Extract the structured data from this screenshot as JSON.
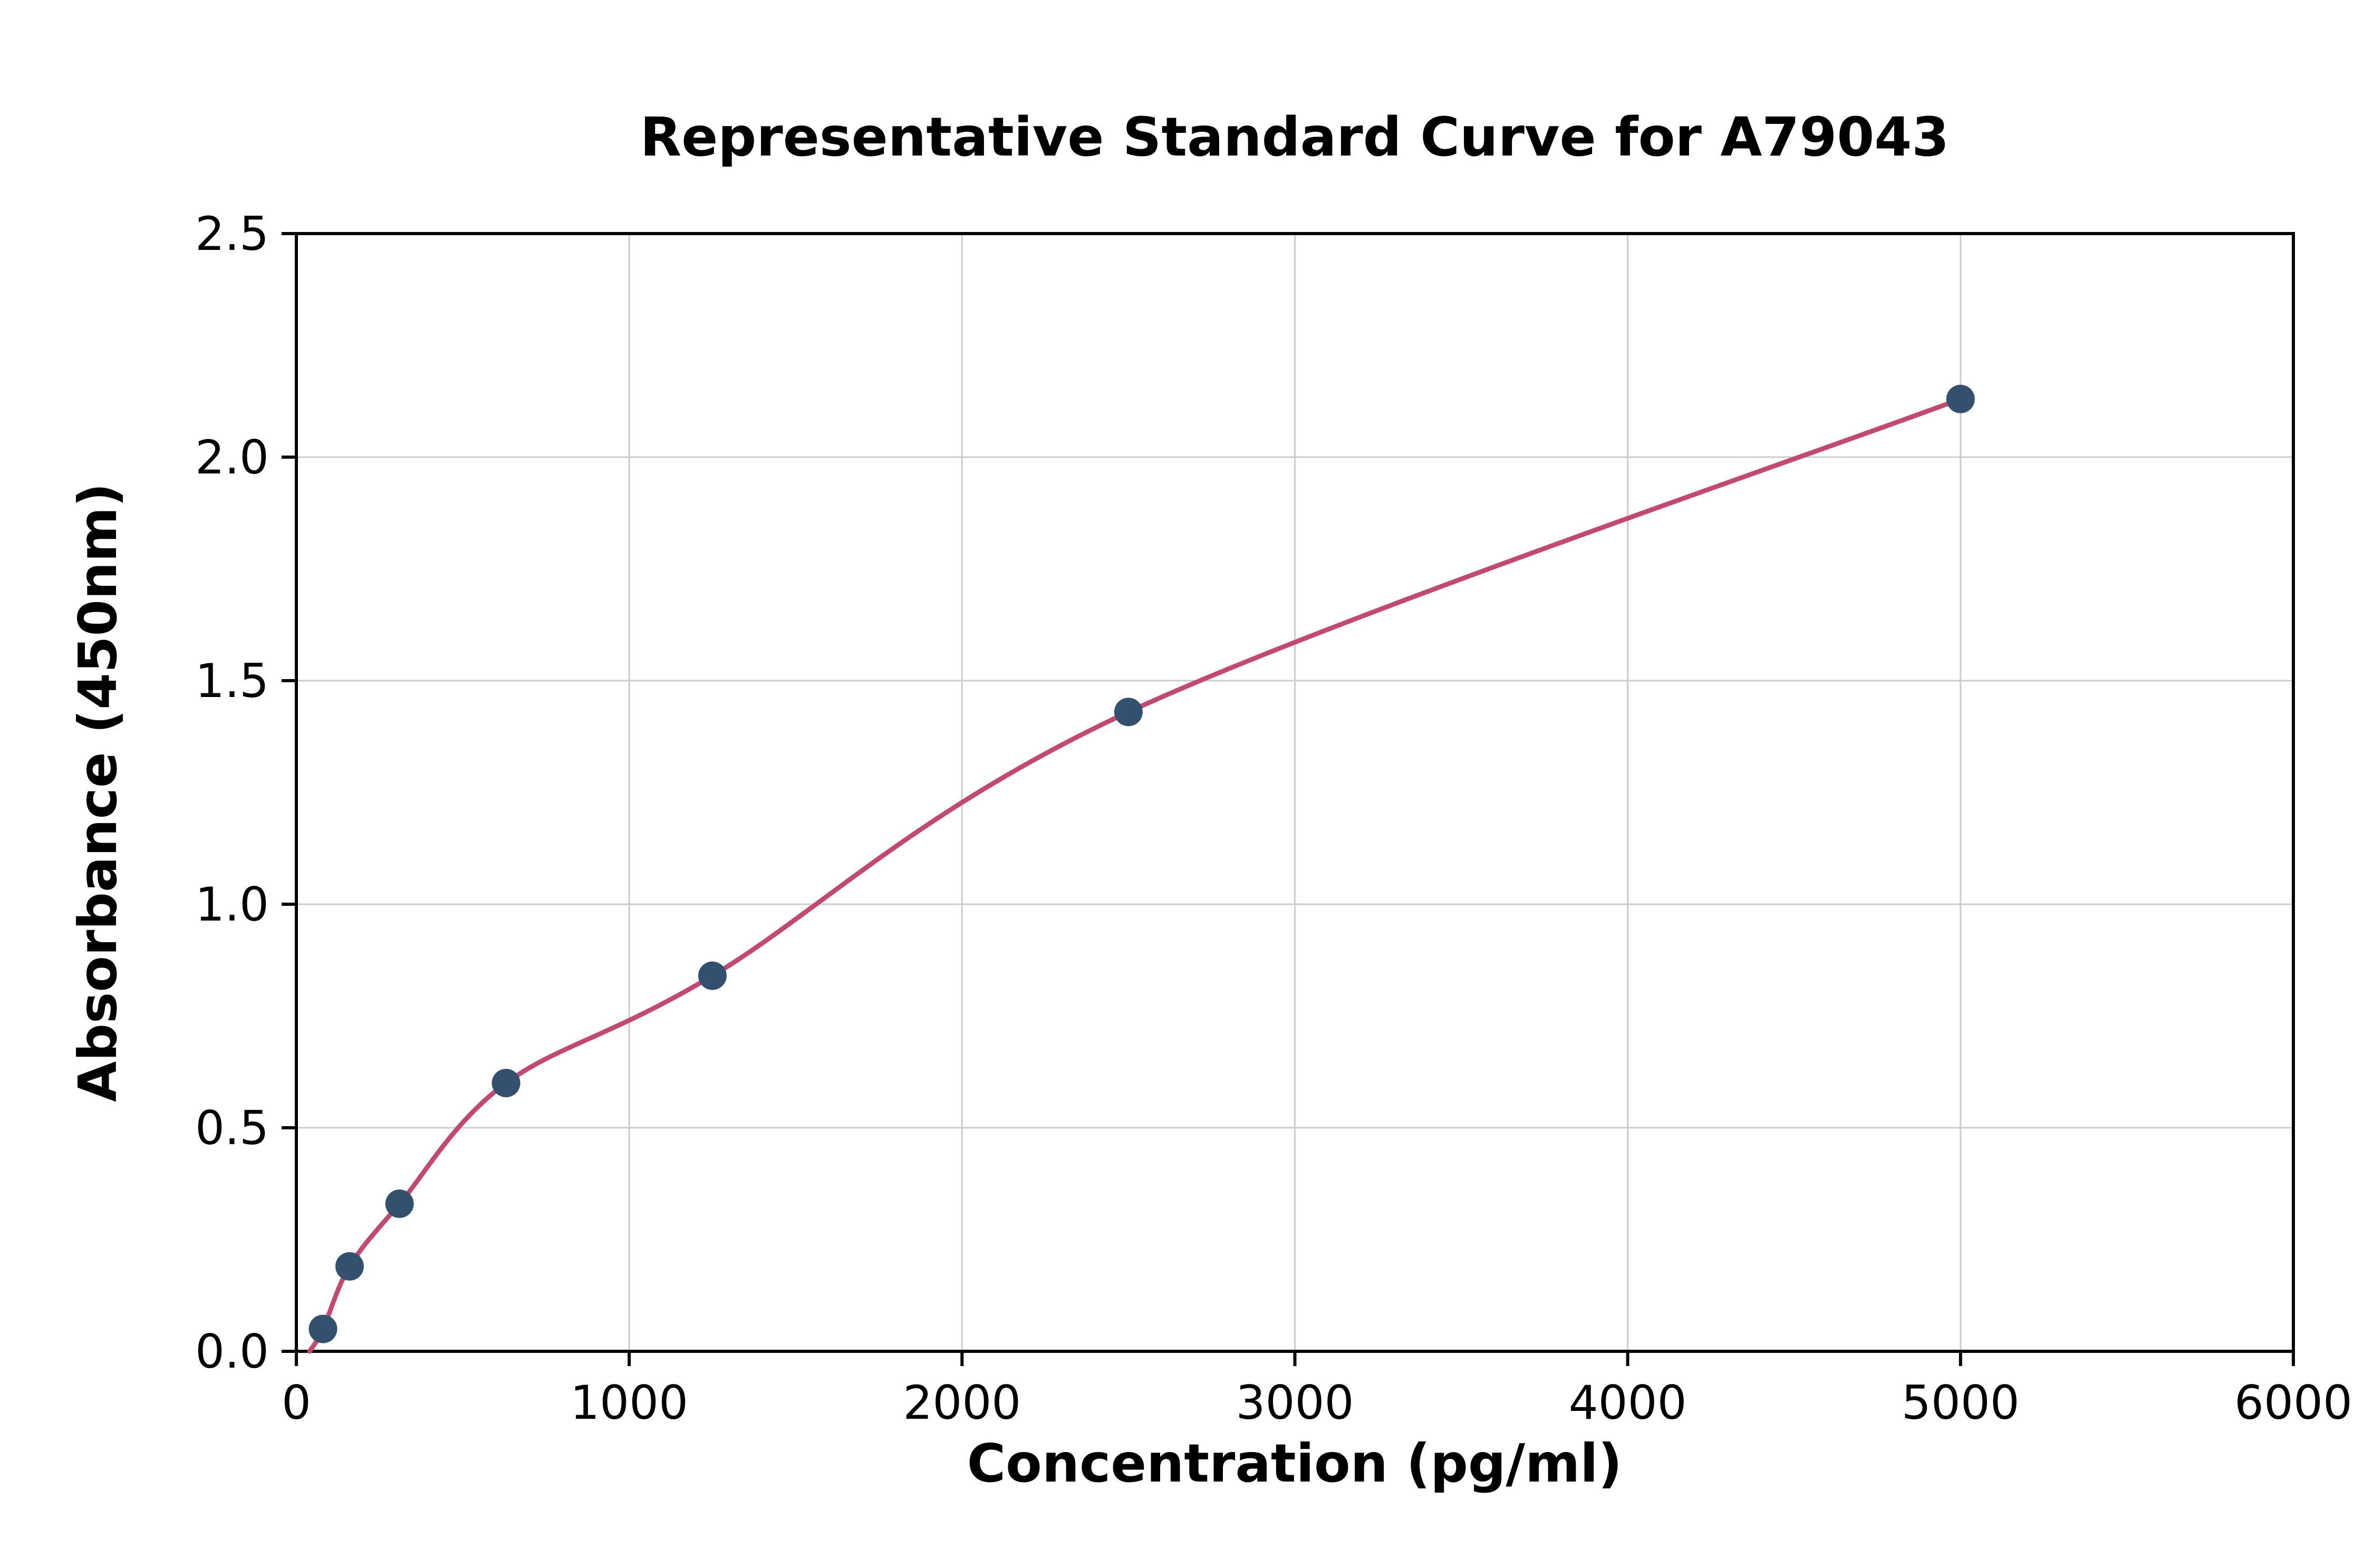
{
  "chart_data": {
    "type": "scatter",
    "title": "Representative Standard Curve for A79043",
    "xlabel": "Concentration (pg/ml)",
    "ylabel": "Absorbance (450nm)",
    "xlim": [
      0,
      6000
    ],
    "ylim": [
      0,
      2.5
    ],
    "x_ticks": [
      0,
      1000,
      2000,
      3000,
      4000,
      5000,
      6000
    ],
    "y_ticks": [
      0.0,
      0.5,
      1.0,
      1.5,
      2.0,
      2.5
    ],
    "grid": true,
    "legend": "none",
    "points": [
      {
        "x": 80,
        "y": 0.05
      },
      {
        "x": 160,
        "y": 0.19
      },
      {
        "x": 310,
        "y": 0.33
      },
      {
        "x": 630,
        "y": 0.6
      },
      {
        "x": 1250,
        "y": 0.84
      },
      {
        "x": 2500,
        "y": 1.43
      },
      {
        "x": 5000,
        "y": 2.13
      }
    ],
    "curve_start": {
      "x": 40,
      "y": 0.0
    },
    "colors": {
      "curve": "#c04a72",
      "point": "#33506e",
      "grid": "#cccccc",
      "axis": "#000000",
      "background": "#ffffff"
    }
  }
}
